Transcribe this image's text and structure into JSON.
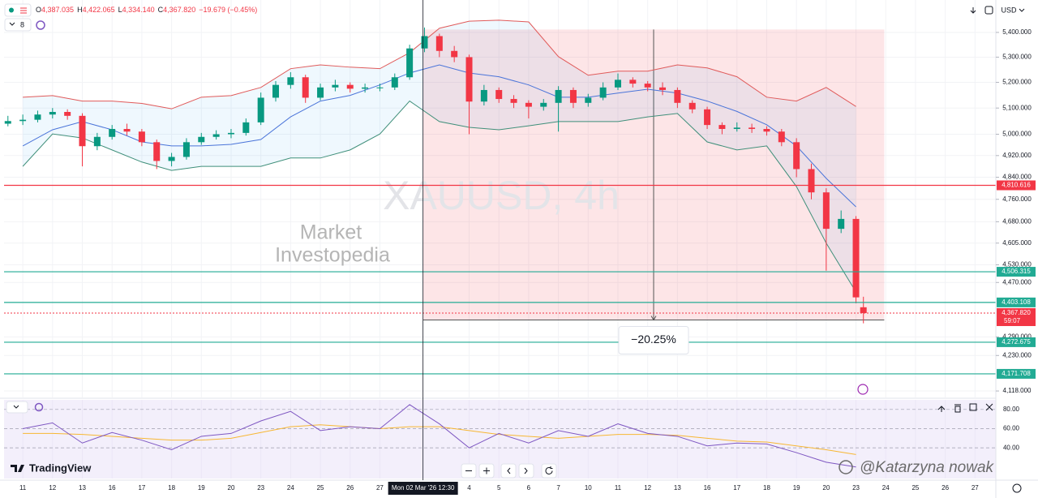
{
  "chart_data": {
    "type": "candlestick",
    "title": "XAUUSD, 4h",
    "watermark": [
      "Market",
      "Investopedia"
    ],
    "ohlc": [
      {
        "key": "O",
        "value": "4,387.035"
      },
      {
        "key": "H",
        "value": "4,422.065"
      },
      {
        "key": "L",
        "value": "4,334.140"
      },
      {
        "key": "C",
        "value": "4,367.820"
      }
    ],
    "change": "−19.679 (−0.45%)",
    "indicator_count": "8",
    "currency": "USD",
    "brand": "TradingView",
    "credit": "@Katarzyna nowak",
    "log": true,
    "grid": true,
    "up_color": "#089981",
    "down_color": "#f23645",
    "xlim": [
      -0.63,
      32.7
    ],
    "ylim": [
      4098,
      5517
    ],
    "xticks": [
      {
        "value": 0,
        "label": "11"
      },
      {
        "value": 1,
        "label": "12"
      },
      {
        "value": 2,
        "label": "13"
      },
      {
        "value": 3,
        "label": "16"
      },
      {
        "value": 4,
        "label": "17"
      },
      {
        "value": 5,
        "label": "18"
      },
      {
        "value": 6,
        "label": "19"
      },
      {
        "value": 7,
        "label": "20"
      },
      {
        "value": 8,
        "label": "23"
      },
      {
        "value": 9,
        "label": "24"
      },
      {
        "value": 10,
        "label": "25"
      },
      {
        "value": 11,
        "label": "26"
      },
      {
        "value": 12,
        "label": "27"
      },
      {
        "value": 15,
        "label": "4"
      },
      {
        "value": 16,
        "label": "5"
      },
      {
        "value": 17,
        "label": "6"
      },
      {
        "value": 18,
        "label": "7"
      },
      {
        "value": 19,
        "label": "10"
      },
      {
        "value": 20,
        "label": "11"
      },
      {
        "value": 21,
        "label": "12"
      },
      {
        "value": 22,
        "label": "13"
      },
      {
        "value": 23,
        "label": "16"
      },
      {
        "value": 24,
        "label": "17"
      },
      {
        "value": 25,
        "label": "18"
      },
      {
        "value": 26,
        "label": "19"
      },
      {
        "value": 27,
        "label": "20"
      },
      {
        "value": 28,
        "label": "23"
      },
      {
        "value": 29,
        "label": "24"
      },
      {
        "value": 30,
        "label": "25"
      },
      {
        "value": 31,
        "label": "26"
      },
      {
        "value": 32,
        "label": "27"
      }
    ],
    "yticks": [
      {
        "value": 5400,
        "label": "5,400.000"
      },
      {
        "value": 5300,
        "label": "5,300.000"
      },
      {
        "value": 5200,
        "label": "5,200.000"
      },
      {
        "value": 5100,
        "label": "5,100.000"
      },
      {
        "value": 5000,
        "label": "5,000.000"
      },
      {
        "value": 4920,
        "label": "4,920.000"
      },
      {
        "value": 4840,
        "label": "4,840.000"
      },
      {
        "value": 4760,
        "label": "4,760.000"
      },
      {
        "value": 4680,
        "label": "4,680.000"
      },
      {
        "value": 4605,
        "label": "4,605.000"
      },
      {
        "value": 4530,
        "label": "4,530.000"
      },
      {
        "value": 4470,
        "label": "4,470.000"
      },
      {
        "value": 4290,
        "label": "4,290.000"
      },
      {
        "value": 4230,
        "label": "4,230.000"
      },
      {
        "value": 4118,
        "label": "4,118.000"
      }
    ],
    "x": [
      -0.5,
      0,
      0.5,
      1,
      1.5,
      2,
      2.5,
      3,
      3.5,
      4,
      4.5,
      5,
      5.5,
      6,
      6.5,
      7,
      7.5,
      8,
      8.5,
      9,
      9.5,
      10,
      10.5,
      11,
      11.5,
      12,
      12.5,
      13,
      13.5,
      14,
      14.5,
      15,
      15.5,
      16,
      16.5,
      17,
      17.5,
      18,
      18.5,
      19,
      19.5,
      20,
      20.5,
      21,
      21.5,
      22,
      22.5,
      23,
      23.5,
      24,
      24.5,
      25,
      25.5,
      26,
      26.5,
      27,
      27.5,
      28,
      28.25
    ],
    "open": [
      5040,
      5050,
      5055,
      5075,
      5085,
      5070,
      4955,
      4990,
      5020,
      5010,
      4970,
      4900,
      4915,
      4970,
      4990,
      5000,
      5005,
      5045,
      5140,
      5190,
      5220,
      5140,
      5180,
      5190,
      5175,
      5180,
      5180,
      5220,
      5335,
      5385,
      5325,
      5300,
      5125,
      5170,
      5135,
      5120,
      5105,
      5120,
      5170,
      5120,
      5140,
      5180,
      5210,
      5195,
      5180,
      5170,
      5120,
      5095,
      5035,
      5020,
      5025,
      5020,
      5010,
      4970,
      4870,
      4785,
      4655,
      4690,
      4387.035
    ],
    "high": [
      5070,
      5075,
      5090,
      5100,
      5095,
      5080,
      5005,
      5035,
      5040,
      5020,
      4980,
      4930,
      4985,
      5005,
      5015,
      5020,
      5060,
      5160,
      5205,
      5240,
      5230,
      5195,
      5210,
      5200,
      5195,
      5195,
      5235,
      5350,
      5420,
      5395,
      5345,
      5310,
      5190,
      5180,
      5150,
      5130,
      5135,
      5185,
      5180,
      5155,
      5200,
      5235,
      5220,
      5205,
      5200,
      5180,
      5130,
      5105,
      5045,
      5045,
      5040,
      5030,
      5020,
      4985,
      4890,
      4800,
      4720,
      4700,
      4422.065
    ],
    "low": [
      5030,
      5035,
      5045,
      5060,
      5055,
      4880,
      4940,
      4980,
      4995,
      4955,
      4870,
      4880,
      4905,
      4960,
      4980,
      4985,
      4995,
      5035,
      5125,
      5175,
      5120,
      5130,
      5165,
      5160,
      5160,
      5165,
      5170,
      5210,
      5320,
      5300,
      5280,
      5000,
      5110,
      5120,
      5100,
      5060,
      5090,
      5010,
      5100,
      5105,
      5130,
      5170,
      5180,
      5165,
      5150,
      5100,
      5080,
      5020,
      5000,
      5010,
      5005,
      4995,
      4955,
      4840,
      4760,
      4510,
      4640,
      4400,
      4334.14
    ],
    "close": [
      5050,
      5055,
      5075,
      5085,
      5070,
      4955,
      4990,
      5020,
      5010,
      4970,
      4900,
      4915,
      4970,
      4990,
      5000,
      5005,
      5045,
      5140,
      5190,
      5220,
      5140,
      5180,
      5190,
      5175,
      5180,
      5180,
      5220,
      5335,
      5385,
      5325,
      5300,
      5125,
      5170,
      5135,
      5120,
      5105,
      5120,
      5170,
      5120,
      5140,
      5180,
      5210,
      5195,
      5180,
      5170,
      5120,
      5095,
      5035,
      5020,
      5025,
      5020,
      5010,
      4970,
      4870,
      4785,
      4655,
      4690,
      4420,
      4367.82
    ],
    "bands": {
      "x": [
        0,
        1,
        2,
        3,
        4,
        5,
        6,
        7,
        8,
        9,
        10,
        11,
        12,
        13,
        14,
        15,
        16,
        17,
        18,
        19,
        20,
        21,
        22,
        23,
        24,
        25,
        26,
        27,
        28
      ],
      "upper": [
        5142,
        5148,
        5127,
        5127,
        5118,
        5097,
        5142,
        5148,
        5180,
        5254,
        5269,
        5260,
        5254,
        5318,
        5417,
        5446,
        5450,
        5443,
        5302,
        5228,
        5244,
        5244,
        5269,
        5257,
        5222,
        5142,
        5127,
        5180,
        5106
      ],
      "middle": [
        4956,
        5017,
        5048,
        5017,
        4971,
        4956,
        4956,
        4962,
        4980,
        5066,
        5127,
        5149,
        5190,
        5237,
        5269,
        5237,
        5222,
        5190,
        5142,
        5142,
        5158,
        5173,
        5158,
        5127,
        5087,
        5036,
        4956,
        4836,
        4733
      ],
      "lower": [
        4880,
        5001,
        4986,
        4941,
        4896,
        4865,
        4880,
        4880,
        4880,
        4911,
        4911,
        4941,
        5001,
        5127,
        5048,
        5026,
        5017,
        5032,
        5048,
        5048,
        5048,
        5066,
        5079,
        4971,
        4941,
        4956,
        4806,
        4605,
        4438
      ],
      "upper_color": "#e05a5a",
      "middle_color": "#4a74d9",
      "lower_color": "#3f8f7a"
    },
    "price_lines": [
      {
        "value": 4810.616,
        "label": "4,810.616",
        "color": "#f23645"
      },
      {
        "value": 4506.315,
        "label": "4,506.315",
        "color": "#22ab94"
      },
      {
        "value": 4403.108,
        "label": "4,403.108",
        "color": "#22ab94"
      },
      {
        "value": 4272.675,
        "label": "4,272.675",
        "color": "#22ab94"
      },
      {
        "value": 4171.708,
        "label": "4,171.708",
        "color": "#22ab94"
      }
    ],
    "last_price": {
      "value": 4367.82,
      "label": "4,367.820",
      "countdown": "59:07",
      "color": "#f23645"
    },
    "range_box": {
      "x0": 13.45,
      "x1": 28.95,
      "y0": 5412,
      "y1": 4345,
      "label": "−20.25%"
    },
    "crosshair": {
      "x": 13.45,
      "label": "Mon 02 Mar '26  12:30"
    },
    "rsi": {
      "x": [
        0,
        1,
        2,
        3,
        4,
        5,
        6,
        7,
        8,
        9,
        10,
        11,
        12,
        13,
        14,
        15,
        16,
        17,
        18,
        19,
        20,
        21,
        22,
        23,
        24,
        25,
        26,
        27,
        28
      ],
      "values": [
        60,
        66,
        45,
        56,
        48,
        38,
        52,
        55,
        68,
        78,
        58,
        62,
        60,
        85,
        65,
        40,
        55,
        45,
        58,
        52,
        65,
        55,
        52,
        42,
        45,
        44,
        35,
        25,
        20
      ],
      "ma": [
        55,
        55,
        54,
        52,
        50,
        48,
        48,
        50,
        56,
        62,
        64,
        62,
        60,
        62,
        62,
        58,
        54,
        52,
        50,
        52,
        54,
        54,
        53,
        50,
        47,
        46,
        42,
        38,
        33
      ],
      "color": "#7e57c2",
      "ma_color": "#f7b733",
      "ylim": [
        8,
        90
      ],
      "yticks": [
        {
          "value": 80,
          "label": "80.00"
        },
        {
          "value": 60,
          "label": "60.00"
        },
        {
          "value": 40,
          "label": "40.00"
        }
      ]
    }
  }
}
